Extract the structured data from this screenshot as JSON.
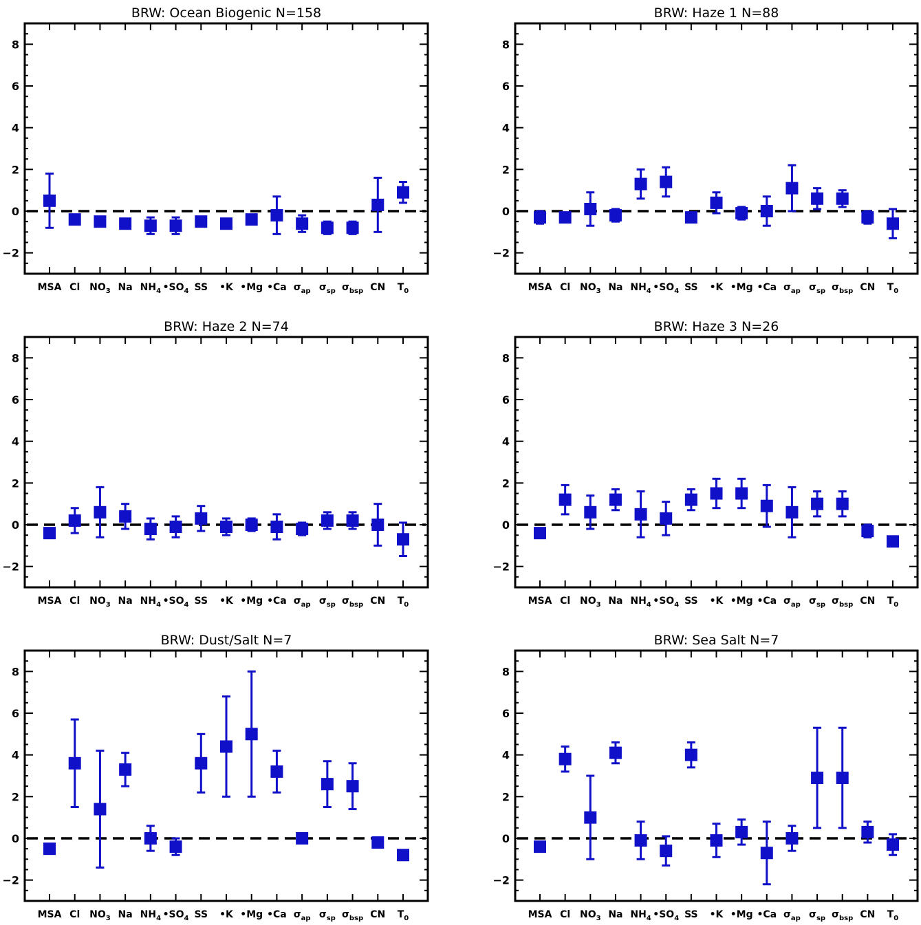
{
  "chart_data": [
    {
      "type": "scatter",
      "title": "BRW: Ocean Biogenic   N=158",
      "categories": [
        "MSA",
        "Cl",
        "NO3",
        "Na",
        "NH4",
        "•SO4",
        "SS",
        "•K",
        "•Mg",
        "•Ca",
        "σap",
        "σsp",
        "σbsp",
        "CN",
        "T0"
      ],
      "values": [
        0.5,
        -0.4,
        -0.5,
        -0.6,
        -0.7,
        -0.7,
        -0.5,
        -0.6,
        -0.4,
        -0.2,
        -0.6,
        -0.8,
        -0.8,
        0.3,
        0.9
      ],
      "errors": [
        1.3,
        0.2,
        0.2,
        0.2,
        0.4,
        0.4,
        0.2,
        0.2,
        0.2,
        0.9,
        0.4,
        0.3,
        0.3,
        1.3,
        0.5
      ],
      "ylim": [
        -3,
        9
      ],
      "yticks": [
        -2,
        0,
        2,
        4,
        6,
        8
      ],
      "reference_line": 0,
      "color": "#1010c8"
    },
    {
      "type": "scatter",
      "title": "BRW: Haze 1   N=88",
      "categories": [
        "MSA",
        "Cl",
        "NO3",
        "Na",
        "NH4",
        "•SO4",
        "SS",
        "•K",
        "•Mg",
        "•Ca",
        "σap",
        "σsp",
        "σbsp",
        "CN",
        "T0"
      ],
      "values": [
        -0.3,
        -0.3,
        0.1,
        -0.2,
        1.3,
        1.4,
        -0.3,
        0.4,
        -0.1,
        0.0,
        1.1,
        0.6,
        0.6,
        -0.3,
        -0.6
      ],
      "errors": [
        0.3,
        0.2,
        0.8,
        0.3,
        0.7,
        0.7,
        0.2,
        0.5,
        0.3,
        0.7,
        1.1,
        0.5,
        0.4,
        0.3,
        0.7
      ],
      "ylim": [
        -3,
        9
      ],
      "yticks": [
        -2,
        0,
        2,
        4,
        6,
        8
      ],
      "reference_line": 0,
      "color": "#1010c8"
    },
    {
      "type": "scatter",
      "title": "BRW: Haze 2   N=74",
      "categories": [
        "MSA",
        "Cl",
        "NO3",
        "Na",
        "NH4",
        "•SO4",
        "SS",
        "•K",
        "•Mg",
        "•Ca",
        "σap",
        "σsp",
        "σbsp",
        "CN",
        "T0"
      ],
      "values": [
        -0.4,
        0.2,
        0.6,
        0.4,
        -0.2,
        -0.1,
        0.3,
        -0.1,
        0.0,
        -0.1,
        -0.2,
        0.2,
        0.2,
        0.0,
        -0.7
      ],
      "errors": [
        0.2,
        0.6,
        1.2,
        0.6,
        0.5,
        0.5,
        0.6,
        0.4,
        0.3,
        0.6,
        0.3,
        0.4,
        0.4,
        1.0,
        0.8
      ],
      "ylim": [
        -3,
        9
      ],
      "yticks": [
        -2,
        0,
        2,
        4,
        6,
        8
      ],
      "reference_line": 0,
      "color": "#1010c8"
    },
    {
      "type": "scatter",
      "title": "BRW: Haze 3   N=26",
      "categories": [
        "MSA",
        "Cl",
        "NO3",
        "Na",
        "NH4",
        "•SO4",
        "SS",
        "•K",
        "•Mg",
        "•Ca",
        "σap",
        "σsp",
        "σbsp",
        "CN",
        "T0"
      ],
      "values": [
        -0.4,
        1.2,
        0.6,
        1.2,
        0.5,
        0.3,
        1.2,
        1.5,
        1.5,
        0.9,
        0.6,
        1.0,
        1.0,
        -0.3,
        -0.8
      ],
      "errors": [
        0.2,
        0.7,
        0.8,
        0.5,
        1.1,
        0.8,
        0.5,
        0.7,
        0.7,
        1.0,
        1.2,
        0.6,
        0.6,
        0.3,
        0.2
      ],
      "ylim": [
        -3,
        9
      ],
      "yticks": [
        -2,
        0,
        2,
        4,
        6,
        8
      ],
      "reference_line": 0,
      "color": "#1010c8"
    },
    {
      "type": "scatter",
      "title": "BRW: Dust/Salt   N=7",
      "categories": [
        "MSA",
        "Cl",
        "NO3",
        "Na",
        "NH4",
        "•SO4",
        "SS",
        "•K",
        "•Mg",
        "•Ca",
        "σap",
        "σsp",
        "σbsp",
        "CN",
        "T0"
      ],
      "values": [
        -0.5,
        3.6,
        1.4,
        3.3,
        0.0,
        -0.4,
        3.6,
        4.4,
        5.0,
        3.2,
        0.0,
        2.6,
        2.5,
        -0.2,
        -0.8
      ],
      "errors": [
        0.2,
        2.1,
        2.8,
        0.8,
        0.6,
        0.4,
        1.4,
        2.4,
        3.0,
        1.0,
        0.2,
        1.1,
        1.1,
        0.2,
        0.2
      ],
      "ylim": [
        -3,
        9
      ],
      "yticks": [
        -2,
        0,
        2,
        4,
        6,
        8
      ],
      "reference_line": 0,
      "color": "#1010c8"
    },
    {
      "type": "scatter",
      "title": "BRW: Sea Salt   N=7",
      "categories": [
        "MSA",
        "Cl",
        "NO3",
        "Na",
        "NH4",
        "•SO4",
        "SS",
        "•K",
        "•Mg",
        "•Ca",
        "σap",
        "σsp",
        "σbsp",
        "CN",
        "T0"
      ],
      "values": [
        -0.4,
        3.8,
        1.0,
        4.1,
        -0.1,
        -0.6,
        4.0,
        -0.1,
        0.3,
        -0.7,
        0.0,
        2.9,
        2.9,
        0.3,
        -0.3
      ],
      "errors": [
        0.2,
        0.6,
        2.0,
        0.5,
        0.9,
        0.7,
        0.6,
        0.8,
        0.6,
        1.5,
        0.6,
        2.4,
        2.4,
        0.5,
        0.5
      ],
      "ylim": [
        -3,
        9
      ],
      "yticks": [
        -2,
        0,
        2,
        4,
        6,
        8
      ],
      "reference_line": 0,
      "color": "#1010c8"
    }
  ],
  "tick_labels": [
    {
      "main": "MSA",
      "sub": ""
    },
    {
      "main": "Cl",
      "sub": ""
    },
    {
      "main": "NO",
      "sub": "3"
    },
    {
      "main": "Na",
      "sub": ""
    },
    {
      "main": "NH",
      "sub": "4"
    },
    {
      "main": "•SO",
      "sub": "4"
    },
    {
      "main": "SS",
      "sub": ""
    },
    {
      "main": "•K",
      "sub": ""
    },
    {
      "main": "•Mg",
      "sub": ""
    },
    {
      "main": "•Ca",
      "sub": ""
    },
    {
      "main": "σ",
      "sub": "ap"
    },
    {
      "main": "σ",
      "sub": "sp"
    },
    {
      "main": "σ",
      "sub": "bsp"
    },
    {
      "main": "CN",
      "sub": ""
    },
    {
      "main": "T",
      "sub": "0"
    }
  ]
}
